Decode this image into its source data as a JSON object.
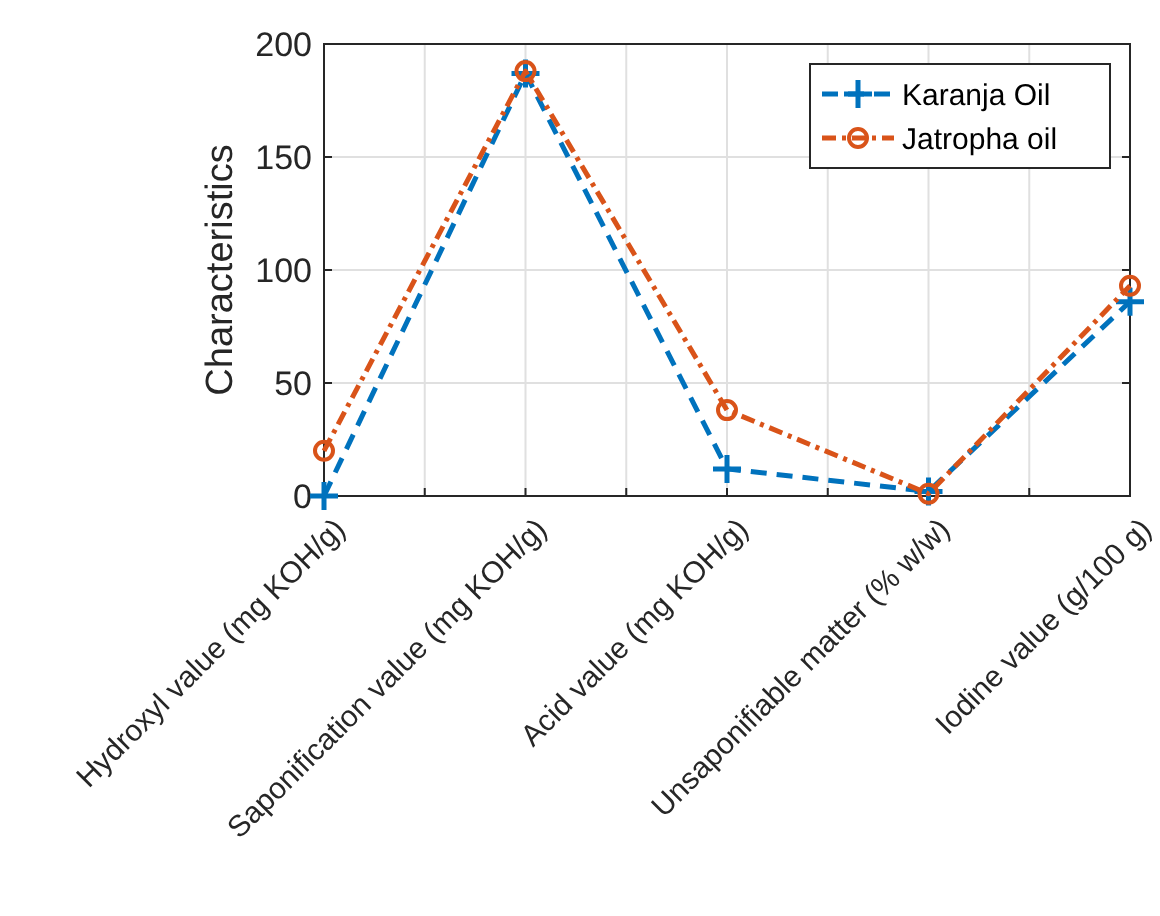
{
  "chart_data": {
    "type": "line",
    "ylabel": "Characteristics",
    "categories": [
      "Hydroxyl value (mg KOH/g)",
      "Saponification value (mg KOH/g)",
      "Acid value (mg KOH/g)",
      "Unsaponifiable matter (% w/w)",
      "Iodine value (g/100 g)"
    ],
    "series": [
      {
        "name": "Karanja Oil",
        "color": "#0072bd",
        "values": [
          0,
          187,
          12,
          2,
          86
        ],
        "marker": "cross",
        "line_style": "dashed"
      },
      {
        "name": "Jatropha oil",
        "color": "#d95319",
        "values": [
          20,
          188,
          38,
          1,
          93
        ],
        "marker": "circle",
        "line_style": "dotted"
      }
    ],
    "ylim": [
      0,
      200
    ],
    "yticks": [
      0,
      50,
      100,
      150,
      200
    ],
    "grid": true,
    "legend": "top right"
  }
}
